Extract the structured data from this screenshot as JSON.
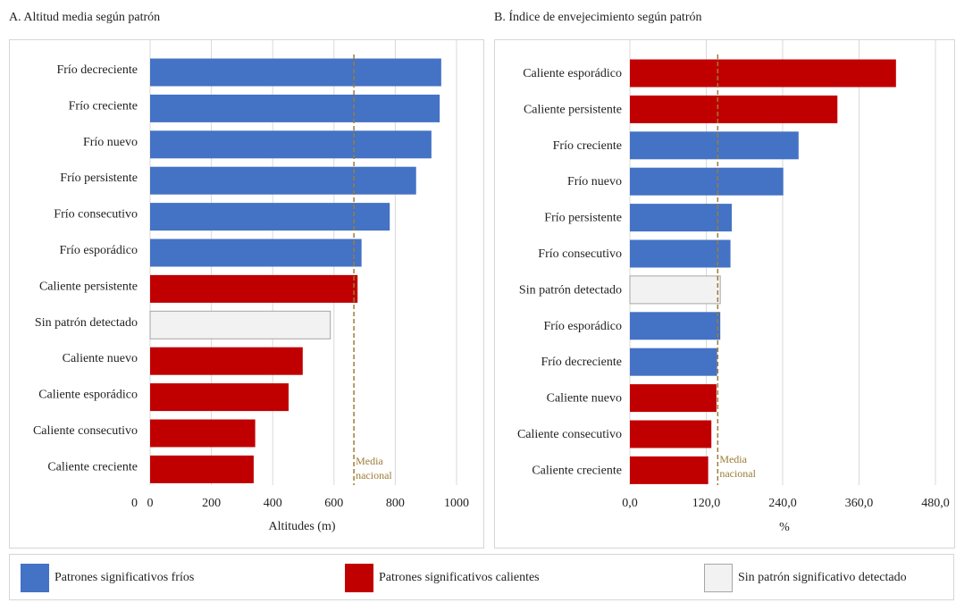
{
  "colors": {
    "cold": "#4472C4",
    "hot": "#C00000",
    "none": "#F2F2F2",
    "none_border": "#A6A6A6",
    "reference": "#9C7C38",
    "grid": "#D9D9D9"
  },
  "legend": {
    "items": [
      {
        "label": "Patrones significativos fríos",
        "color_key": "cold"
      },
      {
        "label": "Patrones significativos calientes",
        "color_key": "hot"
      },
      {
        "label": "Sin patrón significativo detectado",
        "color_key": "none"
      }
    ]
  },
  "chart_data": [
    {
      "type": "bar",
      "orientation": "horizontal",
      "title": "A. Altitud media según patrón",
      "xlabel": "Altitudes (m)",
      "xlim": [
        0,
        1000
      ],
      "xticks": [
        0,
        200,
        400,
        600,
        800,
        1000
      ],
      "xtick_labels": [
        "0",
        "200",
        "400",
        "600",
        "800",
        "1000"
      ],
      "grid": true,
      "reference_line": {
        "value": 665,
        "label_lines": [
          "Media",
          "nacional"
        ]
      },
      "categories": [
        "Frío decreciente",
        "Frío creciente",
        "Frío nuevo",
        "Frío persistente",
        "Frío consecutivo",
        "Frío esporádico",
        "Caliente persistente",
        "Sin patrón detectado",
        "Caliente nuevo",
        "Caliente esporádico",
        "Caliente consecutivo",
        "Caliente creciente",
        "0"
      ],
      "values": [
        950,
        945,
        918,
        868,
        782,
        690,
        677,
        588,
        498,
        452,
        343,
        338,
        null
      ],
      "bar_values": [
        950,
        945,
        918,
        868,
        782,
        690,
        677,
        588,
        498,
        452,
        343,
        338
      ],
      "bar_groups": [
        "cold",
        "cold",
        "cold",
        "cold",
        "cold",
        "cold",
        "hot",
        "none",
        "hot",
        "hot",
        "hot",
        "hot"
      ]
    },
    {
      "type": "bar",
      "orientation": "horizontal",
      "title": "B. Índice de envejecimiento según patrón",
      "xlabel": "%",
      "xlim": [
        0,
        480
      ],
      "xticks": [
        0,
        120,
        240,
        360,
        480
      ],
      "xtick_labels": [
        "0,0",
        "120,0",
        "240,0",
        "360,0",
        "480,0"
      ],
      "grid": true,
      "reference_line": {
        "value": 138,
        "label_lines": [
          "Media",
          "nacional"
        ]
      },
      "categories": [
        "Caliente esporádico",
        "Caliente persistente",
        "Frío creciente",
        "Frío nuevo",
        "Frío persistente",
        "Frío consecutivo",
        "Sin patrón detectado",
        "Frío esporádico",
        "Frío decreciente",
        "Caliente nuevo",
        "Caliente consecutivo",
        "Caliente creciente"
      ],
      "values": [
        418,
        326,
        265,
        241,
        160,
        158,
        142,
        142,
        137,
        136,
        128,
        123
      ],
      "bar_groups": [
        "hot",
        "hot",
        "cold",
        "cold",
        "cold",
        "cold",
        "none",
        "cold",
        "cold",
        "hot",
        "hot",
        "hot"
      ]
    }
  ]
}
